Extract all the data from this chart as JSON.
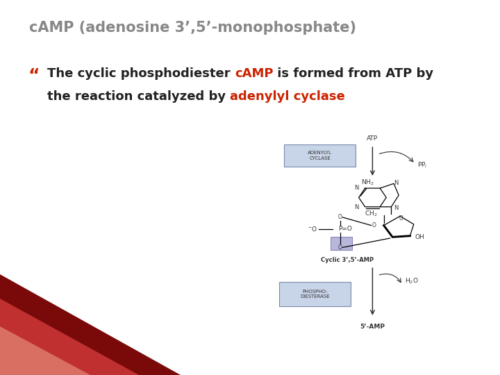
{
  "title": "cAMP (adenosine 3’,5’-monophosphate)",
  "title_color": "#888888",
  "title_fontsize": 15,
  "bullet_char": "“",
  "bullet_color": "#cc2200",
  "line1_parts": [
    {
      "text": "The cyclic phosphodiester ",
      "color": "#222222",
      "bold": true
    },
    {
      "text": "cAMP",
      "color": "#cc2200",
      "bold": true
    },
    {
      "text": " is formed from ATP by",
      "color": "#222222",
      "bold": true
    }
  ],
  "line2_parts": [
    {
      "text": "the reaction catalyzed by ",
      "color": "#222222",
      "bold": true
    },
    {
      "text": "adenylyl cyclase",
      "color": "#cc2200",
      "bold": true
    }
  ],
  "text_fontsize": 13,
  "bg_color": "#ffffff",
  "tri_colors": [
    "#7a0a0a",
    "#c03030",
    "#e08070"
  ]
}
